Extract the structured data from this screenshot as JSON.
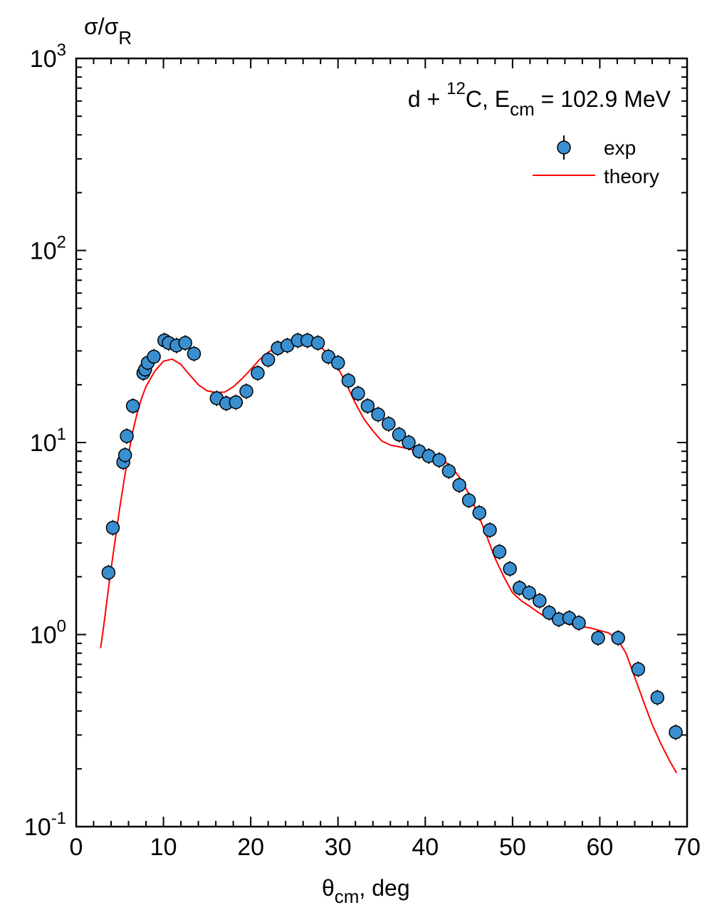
{
  "chart_data": {
    "type": "scatter",
    "annotation": {
      "reaction_prefix": "d + ",
      "reaction_mass": "12",
      "reaction_nucleus": "C, E",
      "energy_subscript": "cm",
      "energy_value": " = 102.9 MeV"
    },
    "ylabel": {
      "main": "σ/σ",
      "sub": "R"
    },
    "xlabel": {
      "main": "θ",
      "sub": "cm",
      "rest": ", deg"
    },
    "xlim": [
      0,
      70
    ],
    "ylim": [
      0.1,
      1000
    ],
    "yscale": "log",
    "x_ticks": [
      "0",
      "10",
      "20",
      "30",
      "40",
      "50",
      "60",
      "70"
    ],
    "y_ticks": [
      {
        "base": "10",
        "exp": "-1"
      },
      {
        "base": "10",
        "exp": "0"
      },
      {
        "base": "10",
        "exp": "1"
      },
      {
        "base": "10",
        "exp": "2"
      },
      {
        "base": "10",
        "exp": "3"
      }
    ],
    "legend": {
      "position": "top-right",
      "entries": [
        {
          "label": "exp",
          "marker": "circle",
          "color": "#3a8fd0"
        },
        {
          "label": "theory",
          "marker": "line",
          "color": "#ff0000"
        }
      ]
    },
    "series": [
      {
        "name": "exp",
        "kind": "points",
        "color": "#3a8fd0",
        "x": [
          3.7,
          4.2,
          5.4,
          5.6,
          5.8,
          6.5,
          7.7,
          7.9,
          8.2,
          8.9,
          10.1,
          10.6,
          11.5,
          12.5,
          13.5,
          16.1,
          17.2,
          18.3,
          19.5,
          20.8,
          22.0,
          23.1,
          24.2,
          25.4,
          26.5,
          27.7,
          28.9,
          30.0,
          31.2,
          32.3,
          33.4,
          34.6,
          35.8,
          37.0,
          38.1,
          39.3,
          40.4,
          41.6,
          42.7,
          43.9,
          45.0,
          46.2,
          47.4,
          48.5,
          49.7,
          50.8,
          51.9,
          53.1,
          54.2,
          55.3,
          56.5,
          57.6,
          59.8,
          62.1,
          64.4,
          66.6,
          68.7
        ],
        "y": [
          2.1,
          3.6,
          7.9,
          8.6,
          10.8,
          15.5,
          23,
          24,
          26,
          28,
          34,
          33,
          32,
          33,
          29,
          17,
          16,
          16.2,
          18.5,
          23,
          27,
          31,
          32,
          34,
          34,
          33,
          28,
          26,
          21,
          18,
          15.5,
          14,
          12.5,
          11,
          10,
          9,
          8.5,
          8.1,
          7.1,
          6,
          5,
          4.3,
          3.5,
          2.7,
          2.2,
          1.75,
          1.65,
          1.5,
          1.3,
          1.2,
          1.22,
          1.15,
          0.96,
          0.96,
          0.66,
          0.47,
          0.31
        ]
      },
      {
        "name": "theory",
        "kind": "line",
        "color": "#ff0000",
        "x": [
          2.8,
          3.2,
          3.6,
          4.0,
          4.5,
          5.0,
          5.5,
          6.0,
          6.5,
          7.0,
          7.5,
          8.0,
          9.0,
          10.0,
          11.0,
          12.0,
          13.0,
          14.0,
          15.0,
          16.0,
          17.0,
          18.0,
          19.0,
          20.0,
          21.0,
          22.0,
          23.0,
          24.0,
          25.0,
          26.0,
          27.0,
          28.0,
          29.0,
          30.0,
          31.0,
          32.0,
          33.0,
          34.0,
          35.0,
          36.0,
          37.0,
          38.0,
          39.0,
          40.0,
          41.0,
          42.0,
          43.0,
          44.0,
          45.0,
          46.0,
          47.0,
          48.0,
          49.0,
          50.0,
          51.0,
          52.0,
          53.0,
          54.0,
          55.0,
          56.0,
          57.0,
          58.0,
          59.0,
          60.0,
          61.0,
          62.0,
          63.0,
          64.0,
          65.0,
          66.0,
          67.0,
          68.0,
          68.8
        ],
        "y": [
          0.85,
          1.15,
          1.6,
          2.2,
          3.2,
          4.6,
          6.4,
          8.7,
          11.5,
          14.3,
          17.0,
          19.6,
          23.5,
          26.5,
          27.2,
          25.5,
          22.5,
          20.0,
          18.6,
          18.2,
          18.3,
          19.5,
          21.5,
          24.0,
          27.0,
          29.5,
          31.5,
          32.5,
          33.0,
          33.2,
          33.0,
          31.5,
          28.5,
          24.5,
          20.0,
          16.0,
          13.2,
          11.5,
          10.2,
          9.7,
          9.5,
          9.3,
          9.0,
          8.8,
          8.5,
          8.1,
          7.5,
          6.5,
          5.4,
          4.3,
          3.3,
          2.5,
          2.0,
          1.65,
          1.5,
          1.4,
          1.3,
          1.22,
          1.18,
          1.15,
          1.12,
          1.1,
          1.08,
          1.05,
          1.02,
          0.95,
          0.8,
          0.6,
          0.45,
          0.34,
          0.27,
          0.22,
          0.19
        ]
      }
    ]
  }
}
